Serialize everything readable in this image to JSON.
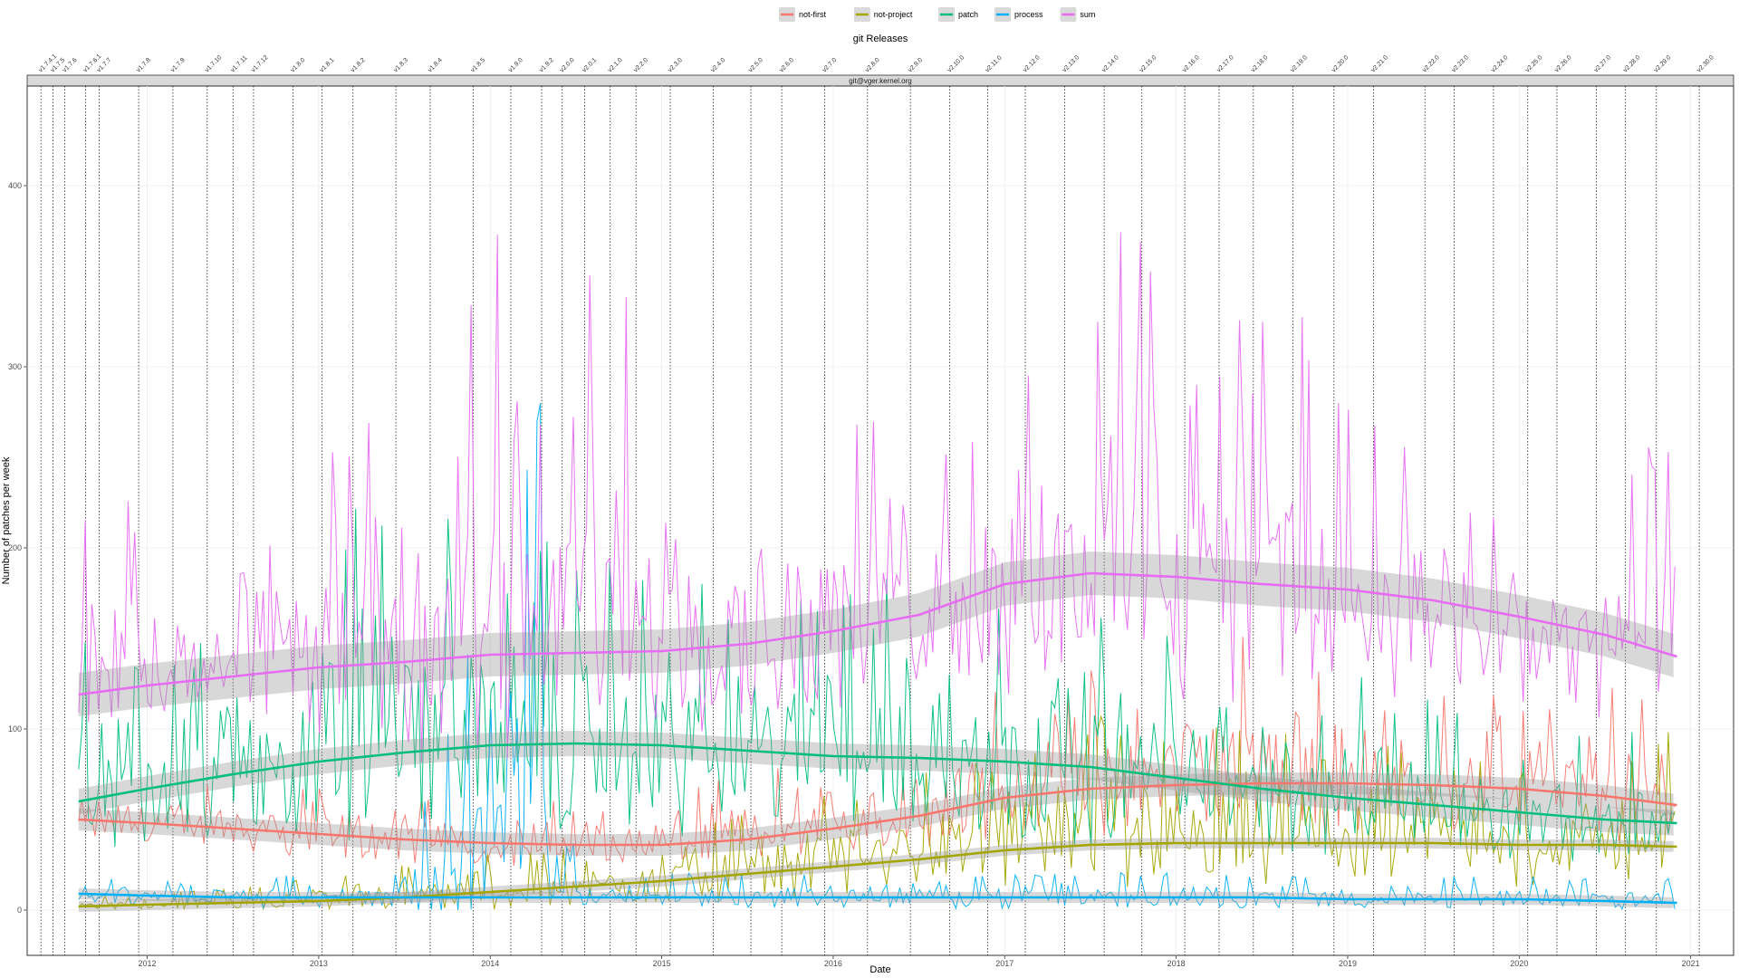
{
  "chart_data": {
    "type": "line",
    "title": "git Releases",
    "facet_label": "git@vger.kernel.org",
    "xlabel": "Date",
    "ylabel": "Number of patches per week",
    "xlim": [
      2011.3,
      2021.25
    ],
    "ylim": [
      -25,
      455
    ],
    "x_ticks": [
      2012,
      2013,
      2014,
      2015,
      2016,
      2017,
      2018,
      2019,
      2020,
      2021
    ],
    "y_ticks": [
      0,
      100,
      200,
      300,
      400
    ],
    "grid": true,
    "legend_position": "top",
    "series": [
      {
        "name": "not-first",
        "color": "#F8766D",
        "trend": [
          [
            2011.6,
            50
          ],
          [
            2012,
            48
          ],
          [
            2012.5,
            45
          ],
          [
            2013,
            42
          ],
          [
            2013.5,
            39
          ],
          [
            2014,
            37
          ],
          [
            2014.5,
            36
          ],
          [
            2015,
            36
          ],
          [
            2015.5,
            39
          ],
          [
            2016,
            45
          ],
          [
            2016.5,
            52
          ],
          [
            2017,
            62
          ],
          [
            2017.5,
            67
          ],
          [
            2018,
            69
          ],
          [
            2018.5,
            70
          ],
          [
            2019,
            70
          ],
          [
            2019.5,
            69
          ],
          [
            2020,
            67
          ],
          [
            2020.5,
            63
          ],
          [
            2020.92,
            58
          ]
        ],
        "band": 6,
        "weekly_envelope": [
          [
            2011.6,
            35,
            70
          ],
          [
            2012.5,
            30,
            75
          ],
          [
            2013.5,
            20,
            65
          ],
          [
            2014.5,
            20,
            60
          ],
          [
            2015.5,
            25,
            75
          ],
          [
            2016.5,
            35,
            110
          ],
          [
            2017.5,
            40,
            140
          ],
          [
            2018,
            45,
            160
          ],
          [
            2018.5,
            40,
            150
          ],
          [
            2019,
            35,
            130
          ],
          [
            2019.5,
            35,
            120
          ],
          [
            2020.5,
            30,
            130
          ],
          [
            2020.92,
            40,
            110
          ]
        ]
      },
      {
        "name": "not-project",
        "color": "#A3A500",
        "trend": [
          [
            2011.6,
            2
          ],
          [
            2012,
            3
          ],
          [
            2012.5,
            4
          ],
          [
            2013,
            5
          ],
          [
            2013.5,
            7
          ],
          [
            2014,
            10
          ],
          [
            2014.5,
            13
          ],
          [
            2015,
            16
          ],
          [
            2015.5,
            20
          ],
          [
            2016,
            24
          ],
          [
            2016.5,
            28
          ],
          [
            2017,
            33
          ],
          [
            2017.5,
            36
          ],
          [
            2018,
            37
          ],
          [
            2018.5,
            37
          ],
          [
            2019,
            37
          ],
          [
            2019.5,
            37
          ],
          [
            2020,
            36
          ],
          [
            2020.5,
            36
          ],
          [
            2020.92,
            35
          ]
        ],
        "band": 3,
        "weekly_envelope": [
          [
            2011.6,
            0,
            8
          ],
          [
            2012.5,
            0,
            12
          ],
          [
            2013.5,
            0,
            25
          ],
          [
            2014.5,
            0,
            40
          ],
          [
            2015.5,
            5,
            55
          ],
          [
            2016.5,
            10,
            75
          ],
          [
            2017.5,
            10,
            110
          ],
          [
            2018.5,
            10,
            100
          ],
          [
            2019.5,
            10,
            90
          ],
          [
            2020.5,
            10,
            80
          ],
          [
            2020.92,
            10,
            105
          ]
        ]
      },
      {
        "name": "patch",
        "color": "#00BF7D",
        "trend": [
          [
            2011.6,
            60
          ],
          [
            2012,
            67
          ],
          [
            2012.5,
            75
          ],
          [
            2013,
            82
          ],
          [
            2013.5,
            87
          ],
          [
            2014,
            91
          ],
          [
            2014.5,
            92
          ],
          [
            2015,
            91
          ],
          [
            2015.5,
            88
          ],
          [
            2016,
            85
          ],
          [
            2016.5,
            84
          ],
          [
            2017,
            82
          ],
          [
            2017.5,
            79
          ],
          [
            2018,
            73
          ],
          [
            2018.5,
            67
          ],
          [
            2019,
            62
          ],
          [
            2019.5,
            58
          ],
          [
            2020,
            54
          ],
          [
            2020.5,
            50
          ],
          [
            2020.92,
            48
          ]
        ],
        "band": 7,
        "weekly_envelope": [
          [
            2011.6,
            40,
            160
          ],
          [
            2012.5,
            30,
            150
          ],
          [
            2013.5,
            30,
            255
          ],
          [
            2014.5,
            30,
            200
          ],
          [
            2015.5,
            30,
            180
          ],
          [
            2016.5,
            30,
            210
          ],
          [
            2017.5,
            30,
            170
          ],
          [
            2018.5,
            20,
            150
          ],
          [
            2019.5,
            20,
            120
          ],
          [
            2020.5,
            20,
            100
          ],
          [
            2020.92,
            30,
            100
          ]
        ]
      },
      {
        "name": "process",
        "color": "#00B0F6",
        "trend": [
          [
            2011.6,
            9
          ],
          [
            2012,
            8
          ],
          [
            2012.5,
            7
          ],
          [
            2013,
            7
          ],
          [
            2013.5,
            7
          ],
          [
            2014,
            7
          ],
          [
            2014.5,
            7
          ],
          [
            2015,
            7
          ],
          [
            2015.5,
            7
          ],
          [
            2016,
            7
          ],
          [
            2016.5,
            7
          ],
          [
            2017,
            7
          ],
          [
            2017.5,
            7
          ],
          [
            2018,
            7
          ],
          [
            2018.5,
            7
          ],
          [
            2019,
            6
          ],
          [
            2019.5,
            6
          ],
          [
            2020,
            6
          ],
          [
            2020.5,
            5
          ],
          [
            2020.92,
            4
          ]
        ],
        "band": 3,
        "weekly_envelope": [
          [
            2011.6,
            0,
            18
          ],
          [
            2013.5,
            0,
            20
          ],
          [
            2014.3,
            0,
            290
          ],
          [
            2014.5,
            0,
            20
          ],
          [
            2016.5,
            0,
            22
          ],
          [
            2018.5,
            0,
            20
          ],
          [
            2020.92,
            0,
            18
          ]
        ]
      },
      {
        "name": "sum",
        "color": "#E76BF3",
        "trend": [
          [
            2011.6,
            119
          ],
          [
            2012,
            124
          ],
          [
            2012.5,
            129
          ],
          [
            2013,
            134
          ],
          [
            2013.5,
            137
          ],
          [
            2014,
            141
          ],
          [
            2014.5,
            142
          ],
          [
            2015,
            143
          ],
          [
            2015.5,
            147
          ],
          [
            2016,
            154
          ],
          [
            2016.5,
            163
          ],
          [
            2017,
            180
          ],
          [
            2017.5,
            186
          ],
          [
            2018,
            184
          ],
          [
            2018.5,
            180
          ],
          [
            2019,
            177
          ],
          [
            2019.5,
            171
          ],
          [
            2020,
            162
          ],
          [
            2020.5,
            152
          ],
          [
            2020.92,
            140
          ]
        ],
        "band": 12,
        "weekly_envelope": [
          [
            2011.6,
            120,
            245
          ],
          [
            2012.5,
            90,
            190
          ],
          [
            2013.5,
            100,
            335
          ],
          [
            2014.4,
            95,
            410
          ],
          [
            2015.5,
            100,
            265
          ],
          [
            2016.5,
            110,
            280
          ],
          [
            2017.5,
            120,
            350
          ],
          [
            2018.1,
            110,
            435
          ],
          [
            2018.5,
            120,
            355
          ],
          [
            2019.5,
            90,
            250
          ],
          [
            2020.5,
            80,
            240
          ],
          [
            2020.92,
            120,
            270
          ]
        ]
      }
    ],
    "releases": [
      {
        "x": 2011.38,
        "label": "v1.7.4.1"
      },
      {
        "x": 2011.45,
        "label": "v1.7.5"
      },
      {
        "x": 2011.52,
        "label": "v1.7.6"
      },
      {
        "x": 2011.64,
        "label": "v1.7.6.1"
      },
      {
        "x": 2011.72,
        "label": "v1.7.7"
      },
      {
        "x": 2011.95,
        "label": "v1.7.8"
      },
      {
        "x": 2012.15,
        "label": "v1.7.9"
      },
      {
        "x": 2012.35,
        "label": "v1.7.10"
      },
      {
        "x": 2012.5,
        "label": "v1.7.11"
      },
      {
        "x": 2012.62,
        "label": "v1.7.12"
      },
      {
        "x": 2012.85,
        "label": "v1.8.0"
      },
      {
        "x": 2013.02,
        "label": "v1.8.1"
      },
      {
        "x": 2013.2,
        "label": "v1.8.2"
      },
      {
        "x": 2013.45,
        "label": "v1.8.3"
      },
      {
        "x": 2013.65,
        "label": "v1.8.4"
      },
      {
        "x": 2013.9,
        "label": "v1.8.5"
      },
      {
        "x": 2014.12,
        "label": "v1.9.0"
      },
      {
        "x": 2014.3,
        "label": "v1.9.2"
      },
      {
        "x": 2014.42,
        "label": "v2.0.0"
      },
      {
        "x": 2014.55,
        "label": "v2.0.1"
      },
      {
        "x": 2014.7,
        "label": "v2.1.0"
      },
      {
        "x": 2014.85,
        "label": "v2.2.0"
      },
      {
        "x": 2015.05,
        "label": "v2.3.0"
      },
      {
        "x": 2015.3,
        "label": "v2.4.0"
      },
      {
        "x": 2015.52,
        "label": "v2.5.0"
      },
      {
        "x": 2015.7,
        "label": "v2.6.0"
      },
      {
        "x": 2015.95,
        "label": "v2.7.0"
      },
      {
        "x": 2016.2,
        "label": "v2.8.0"
      },
      {
        "x": 2016.45,
        "label": "v2.9.0"
      },
      {
        "x": 2016.68,
        "label": "v2.10.0"
      },
      {
        "x": 2016.9,
        "label": "v2.11.0"
      },
      {
        "x": 2017.12,
        "label": "v2.12.0"
      },
      {
        "x": 2017.35,
        "label": "v2.13.0"
      },
      {
        "x": 2017.58,
        "label": "v2.14.0"
      },
      {
        "x": 2017.8,
        "label": "v2.15.0"
      },
      {
        "x": 2018.05,
        "label": "v2.16.0"
      },
      {
        "x": 2018.25,
        "label": "v2.17.0"
      },
      {
        "x": 2018.45,
        "label": "v2.18.0"
      },
      {
        "x": 2018.68,
        "label": "v2.19.0"
      },
      {
        "x": 2018.92,
        "label": "v2.20.0"
      },
      {
        "x": 2019.15,
        "label": "v2.21.0"
      },
      {
        "x": 2019.45,
        "label": "v2.22.0"
      },
      {
        "x": 2019.62,
        "label": "v2.23.0"
      },
      {
        "x": 2019.85,
        "label": "v2.24.0"
      },
      {
        "x": 2020.05,
        "label": "v2.25.0"
      },
      {
        "x": 2020.22,
        "label": "v2.26.0"
      },
      {
        "x": 2020.45,
        "label": "v2.27.0"
      },
      {
        "x": 2020.62,
        "label": "v2.28.0"
      },
      {
        "x": 2020.8,
        "label": "v2.29.0"
      },
      {
        "x": 2021.05,
        "label": "v2.30.0"
      }
    ]
  }
}
